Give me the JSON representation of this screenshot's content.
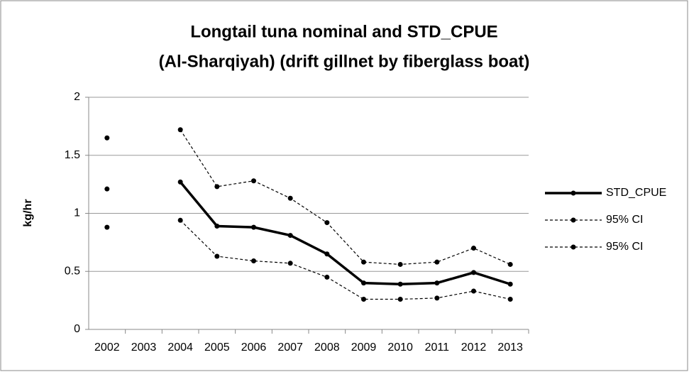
{
  "chart_data": {
    "type": "line",
    "title": [
      "Longtail tuna nominal and STD_CPUE",
      "(Al-Sharqiyah) (drift gillnet by fiberglass boat)"
    ],
    "y_label": "kg/hr",
    "categories": [
      "2002",
      "2003",
      "2004",
      "2005",
      "2006",
      "2007",
      "2008",
      "2009",
      "2010",
      "2011",
      "2012",
      "2013"
    ],
    "series": [
      {
        "name": "STD_CPUE",
        "color": "#000000",
        "line_style": "solid",
        "line_width": 3.5,
        "values": [
          1.21,
          null,
          1.27,
          0.89,
          0.88,
          0.81,
          0.65,
          0.4,
          0.39,
          0.4,
          0.49,
          0.39
        ]
      },
      {
        "name": "95% CI",
        "color": "#000000",
        "line_style": "dashed",
        "line_width": 1.2,
        "values": [
          1.65,
          null,
          1.72,
          1.23,
          1.28,
          1.13,
          0.92,
          0.58,
          0.56,
          0.58,
          0.7,
          0.56
        ]
      },
      {
        "name": "95% CI",
        "color": "#000000",
        "line_style": "dashed",
        "line_width": 1.2,
        "values": [
          0.88,
          null,
          0.94,
          0.63,
          0.59,
          0.57,
          0.45,
          0.26,
          0.26,
          0.27,
          0.33,
          0.26
        ]
      }
    ],
    "ylim": [
      0,
      2
    ],
    "yticks": [
      0,
      0.5,
      1,
      1.5,
      2
    ],
    "grid": true,
    "legend": "right"
  }
}
